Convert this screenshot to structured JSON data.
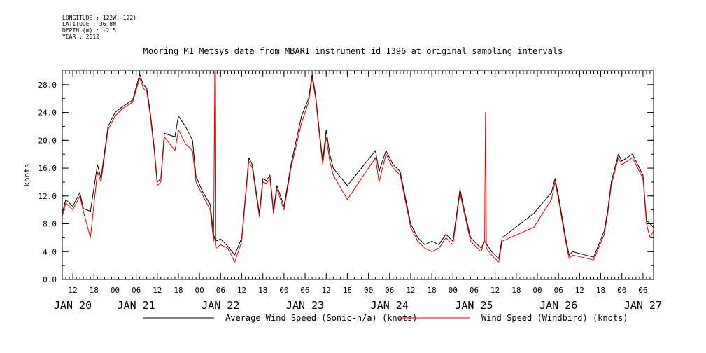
{
  "meta": {
    "longitude": "LONGITUDE : 122W(-122)",
    "latitude": "LATITUDE : 36.8N",
    "depth": "DEPTH (m) : -2.5",
    "year": "YEAR : 2012"
  },
  "colors": {
    "average": "#000000",
    "windbird": "#e00000"
  },
  "chart_data": {
    "type": "line",
    "title": "Mooring M1 Metsys data from MBARI instrument id 1396 at original sampling intervals",
    "ylabel": "knots",
    "ylim": [
      0,
      30
    ],
    "yticks": [
      0,
      4,
      8,
      12,
      16,
      20,
      24,
      28
    ],
    "ytick_labels": [
      "0.0",
      "4.0",
      "8.0",
      "12.0",
      "16.0",
      "20.0",
      "24.0",
      "28.0"
    ],
    "xlim": [
      "2012-01-20T09:00",
      "2012-01-27T09:00"
    ],
    "hour_ticks": [
      "2012-01-20T12:00",
      "2012-01-20T18:00",
      "2012-01-21T00:00",
      "2012-01-21T06:00",
      "2012-01-21T12:00",
      "2012-01-21T18:00",
      "2012-01-22T00:00",
      "2012-01-22T06:00",
      "2012-01-22T12:00",
      "2012-01-22T18:00",
      "2012-01-23T00:00",
      "2012-01-23T06:00",
      "2012-01-23T12:00",
      "2012-01-23T18:00",
      "2012-01-24T00:00",
      "2012-01-24T06:00",
      "2012-01-24T12:00",
      "2012-01-24T18:00",
      "2012-01-25T00:00",
      "2012-01-25T06:00",
      "2012-01-25T12:00",
      "2012-01-25T18:00",
      "2012-01-26T00:00",
      "2012-01-26T06:00",
      "2012-01-26T12:00",
      "2012-01-26T18:00",
      "2012-01-27T00:00",
      "2012-01-27T06:00"
    ],
    "hour_tick_labels": [
      "12",
      "18",
      "00",
      "06",
      "12",
      "18",
      "00",
      "06",
      "12",
      "18",
      "00",
      "06",
      "12",
      "18",
      "00",
      "06",
      "12",
      "18",
      "00",
      "06",
      "12",
      "18",
      "00",
      "06",
      "12",
      "18",
      "00",
      "06"
    ],
    "day_labels": [
      {
        "t": "2012-01-20T12:00",
        "label": "JAN 20"
      },
      {
        "t": "2012-01-21T06:00",
        "label": "JAN 21"
      },
      {
        "t": "2012-01-22T06:00",
        "label": "JAN 22"
      },
      {
        "t": "2012-01-23T06:00",
        "label": "JAN 23"
      },
      {
        "t": "2012-01-24T06:00",
        "label": "JAN 24"
      },
      {
        "t": "2012-01-25T06:00",
        "label": "JAN 25"
      },
      {
        "t": "2012-01-26T06:00",
        "label": "JAN 26"
      },
      {
        "t": "2012-01-27T06:00",
        "label": "JAN 27"
      }
    ],
    "series": [
      {
        "name": "Average Wind Speed (Sonic-n/a) (knots)",
        "x": [
          "2012-01-20T09:00",
          "2012-01-20T10:00",
          "2012-01-20T12:00",
          "2012-01-20T14:00",
          "2012-01-20T15:00",
          "2012-01-20T17:00",
          "2012-01-20T19:00",
          "2012-01-20T20:00",
          "2012-01-20T22:00",
          "2012-01-21T00:00",
          "2012-01-21T02:00",
          "2012-01-21T05:00",
          "2012-01-21T07:00",
          "2012-01-21T08:00",
          "2012-01-21T09:00",
          "2012-01-21T10:00",
          "2012-01-21T11:00",
          "2012-01-21T12:00",
          "2012-01-21T13:00",
          "2012-01-21T14:00",
          "2012-01-21T17:00",
          "2012-01-21T18:00",
          "2012-01-21T20:00",
          "2012-01-21T22:00",
          "2012-01-21T23:00",
          "2012-01-22T01:00",
          "2012-01-22T03:00",
          "2012-01-22T04:00",
          "2012-01-22T04:30",
          "2012-01-22T06:00",
          "2012-01-22T08:00",
          "2012-01-22T10:00",
          "2012-01-22T12:00",
          "2012-01-22T14:00",
          "2012-01-22T15:00",
          "2012-01-22T17:00",
          "2012-01-22T18:00",
          "2012-01-22T19:00",
          "2012-01-22T20:00",
          "2012-01-22T21:00",
          "2012-01-22T22:00",
          "2012-01-23T00:00",
          "2012-01-23T02:00",
          "2012-01-23T05:00",
          "2012-01-23T07:00",
          "2012-01-23T08:00",
          "2012-01-23T09:00",
          "2012-01-23T10:00",
          "2012-01-23T11:00",
          "2012-01-23T12:00",
          "2012-01-23T13:00",
          "2012-01-23T14:00",
          "2012-01-23T18:00",
          "2012-01-24T02:00",
          "2012-01-24T03:00",
          "2012-01-24T05:00",
          "2012-01-24T07:00",
          "2012-01-24T09:00",
          "2012-01-24T10:00",
          "2012-01-24T12:00",
          "2012-01-24T14:00",
          "2012-01-24T16:00",
          "2012-01-24T18:00",
          "2012-01-24T20:00",
          "2012-01-24T22:00",
          "2012-01-25T00:00",
          "2012-01-25T02:00",
          "2012-01-25T03:00",
          "2012-01-25T05:00",
          "2012-01-25T06:00",
          "2012-01-25T08:00",
          "2012-01-25T09:00",
          "2012-01-25T11:00",
          "2012-01-25T13:00",
          "2012-01-25T14:00",
          "2012-01-25T23:00",
          "2012-01-26T04:00",
          "2012-01-26T05:00",
          "2012-01-26T06:00",
          "2012-01-26T08:00",
          "2012-01-26T09:00",
          "2012-01-26T10:00",
          "2012-01-26T16:00",
          "2012-01-26T19:00",
          "2012-01-26T20:00",
          "2012-01-26T21:00",
          "2012-01-26T23:00",
          "2012-01-27T00:00",
          "2012-01-27T03:00",
          "2012-01-27T04:00",
          "2012-01-27T06:00",
          "2012-01-27T07:00",
          "2012-01-27T08:00",
          "2012-01-27T09:00"
        ],
        "y": [
          9.5,
          11.5,
          10.5,
          12.5,
          10.2,
          9.8,
          16.5,
          14.5,
          22.0,
          24.0,
          24.8,
          25.8,
          29.5,
          28.0,
          27.5,
          24.0,
          19.5,
          14.0,
          14.5,
          21.0,
          20.5,
          23.5,
          22.0,
          20.0,
          14.8,
          12.5,
          10.8,
          6.5,
          5.5,
          5.8,
          4.8,
          3.5,
          6.0,
          17.5,
          16.5,
          9.5,
          14.5,
          14.2,
          15.0,
          10.0,
          13.5,
          10.5,
          16.5,
          23.5,
          26.0,
          29.5,
          26.5,
          21.5,
          17.0,
          21.5,
          18.0,
          16.0,
          13.5,
          18.5,
          15.5,
          18.5,
          16.5,
          15.5,
          13.0,
          8.0,
          6.0,
          5.0,
          5.5,
          5.0,
          6.5,
          5.5,
          13.0,
          10.5,
          6.0,
          5.5,
          4.5,
          5.5,
          4.0,
          3.0,
          6.0,
          9.5,
          12.5,
          14.5,
          12.0,
          6.0,
          3.5,
          4.0,
          3.2,
          7.0,
          10.0,
          14.0,
          18.0,
          17.0,
          18.0,
          17.0,
          15.0,
          8.5,
          8.0,
          7.5
        ]
      },
      {
        "name": "Wind Speed (Windbird) (knots)",
        "x": [
          "2012-01-20T09:00",
          "2012-01-20T10:00",
          "2012-01-20T12:00",
          "2012-01-20T14:00",
          "2012-01-20T15:00",
          "2012-01-20T17:00",
          "2012-01-20T19:00",
          "2012-01-20T20:00",
          "2012-01-20T22:00",
          "2012-01-21T00:00",
          "2012-01-21T02:00",
          "2012-01-21T05:00",
          "2012-01-21T07:00",
          "2012-01-21T08:00",
          "2012-01-21T09:00",
          "2012-01-21T10:00",
          "2012-01-21T11:00",
          "2012-01-21T12:00",
          "2012-01-21T13:00",
          "2012-01-21T14:00",
          "2012-01-21T17:00",
          "2012-01-21T18:00",
          "2012-01-21T20:00",
          "2012-01-21T22:00",
          "2012-01-21T23:00",
          "2012-01-22T01:00",
          "2012-01-22T03:00",
          "2012-01-22T04:00",
          "2012-01-22T04:20",
          "2012-01-22T04:30",
          "2012-01-22T04:40",
          "2012-01-22T06:00",
          "2012-01-22T08:00",
          "2012-01-22T10:00",
          "2012-01-22T12:00",
          "2012-01-22T14:00",
          "2012-01-22T15:00",
          "2012-01-22T17:00",
          "2012-01-22T18:00",
          "2012-01-22T19:00",
          "2012-01-22T20:00",
          "2012-01-22T21:00",
          "2012-01-22T22:00",
          "2012-01-23T00:00",
          "2012-01-23T02:00",
          "2012-01-23T05:00",
          "2012-01-23T07:00",
          "2012-01-23T08:00",
          "2012-01-23T09:00",
          "2012-01-23T10:00",
          "2012-01-23T11:00",
          "2012-01-23T12:00",
          "2012-01-23T13:00",
          "2012-01-23T14:00",
          "2012-01-23T18:00",
          "2012-01-24T02:00",
          "2012-01-24T03:00",
          "2012-01-24T05:00",
          "2012-01-24T07:00",
          "2012-01-24T09:00",
          "2012-01-24T10:00",
          "2012-01-24T12:00",
          "2012-01-24T14:00",
          "2012-01-24T16:00",
          "2012-01-24T18:00",
          "2012-01-24T20:00",
          "2012-01-24T22:00",
          "2012-01-25T00:00",
          "2012-01-25T02:00",
          "2012-01-25T03:00",
          "2012-01-25T05:00",
          "2012-01-25T06:00",
          "2012-01-25T08:00",
          "2012-01-25T09:00",
          "2012-01-25T09:15",
          "2012-01-25T09:30",
          "2012-01-25T11:00",
          "2012-01-25T13:00",
          "2012-01-25T14:00",
          "2012-01-25T23:00",
          "2012-01-26T04:00",
          "2012-01-26T05:00",
          "2012-01-26T06:00",
          "2012-01-26T08:00",
          "2012-01-26T09:00",
          "2012-01-26T10:00",
          "2012-01-26T16:00",
          "2012-01-26T19:00",
          "2012-01-26T20:00",
          "2012-01-26T21:00",
          "2012-01-26T23:00",
          "2012-01-27T00:00",
          "2012-01-27T03:00",
          "2012-01-27T04:00",
          "2012-01-27T06:00",
          "2012-01-27T07:00",
          "2012-01-27T08:00",
          "2012-01-27T09:00"
        ],
        "y": [
          9.0,
          11.0,
          10.0,
          12.0,
          9.8,
          6.0,
          15.5,
          14.0,
          21.5,
          23.5,
          24.5,
          25.5,
          29.0,
          27.5,
          27.0,
          23.5,
          19.0,
          13.5,
          14.0,
          20.5,
          18.5,
          21.5,
          19.5,
          18.5,
          14.0,
          12.0,
          10.0,
          5.5,
          30.0,
          5.0,
          4.5,
          5.0,
          4.5,
          2.5,
          5.5,
          17.0,
          16.0,
          9.0,
          14.0,
          13.8,
          14.5,
          9.5,
          13.0,
          10.0,
          16.0,
          22.5,
          25.5,
          29.0,
          26.0,
          21.0,
          16.5,
          20.5,
          17.0,
          15.0,
          11.5,
          17.5,
          14.0,
          18.0,
          16.0,
          15.0,
          12.5,
          7.5,
          5.5,
          4.5,
          4.0,
          4.5,
          6.0,
          5.0,
          12.5,
          10.0,
          5.5,
          5.0,
          4.0,
          5.5,
          24.0,
          4.5,
          3.5,
          2.5,
          5.5,
          7.5,
          11.5,
          14.0,
          11.5,
          5.5,
          3.0,
          3.5,
          2.8,
          6.5,
          9.5,
          13.5,
          17.5,
          16.5,
          17.5,
          16.5,
          14.5,
          8.0,
          6.0,
          7.0
        ]
      }
    ]
  }
}
